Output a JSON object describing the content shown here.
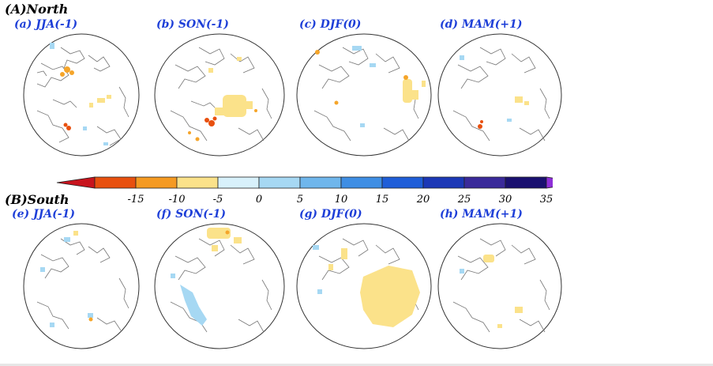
{
  "sections": {
    "north_title": "(A)North",
    "south_title": "(B)South"
  },
  "panels": {
    "north": [
      "(a) JJA(-1)",
      "(b) SON(-1)",
      "(c) DJF(0)",
      "(d) MAM(+1)"
    ],
    "south": [
      "(e) JJA(-1)",
      "(f) SON(-1)",
      "(g) DJF(0)",
      "(h) MAM(+1)"
    ]
  },
  "colorbar": {
    "ticks": [
      "-15",
      "-10",
      "-5",
      "0",
      "5",
      "10",
      "15",
      "20",
      "25",
      "30",
      "35"
    ],
    "colors": [
      "#c8141e",
      "#e8500f",
      "#f59a22",
      "#fbe28a",
      "#d8f1fb",
      "#a6d8f3",
      "#6fb6ec",
      "#3f8ee4",
      "#1f5ed8",
      "#1c38b6",
      "#3a2a9a",
      "#1a1070",
      "#8e2fd8"
    ]
  }
}
